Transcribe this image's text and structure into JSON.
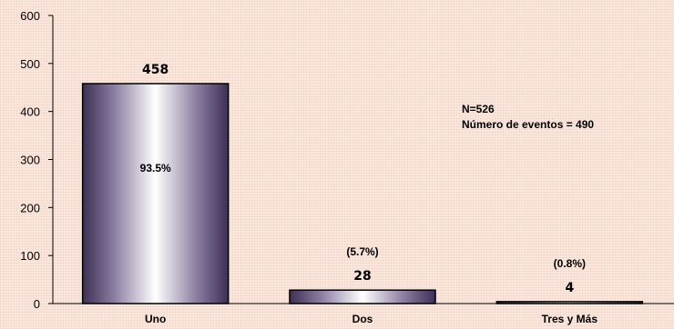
{
  "chart_data": {
    "type": "bar",
    "categories": [
      "Uno",
      "Dos",
      "Tres y Más"
    ],
    "values": [
      458,
      28,
      4
    ],
    "percent_labels": [
      "93.5%",
      "(5.7%)",
      "(0.8%)"
    ],
    "title": "",
    "xlabel": "",
    "ylabel": "",
    "ylim": [
      0,
      600
    ],
    "yticks": [
      0,
      100,
      200,
      300,
      400,
      500,
      600
    ],
    "grid": false,
    "legend": "none",
    "annotations": [
      "N=526",
      "Número de eventos = 490"
    ],
    "colors": {
      "bar_dark": "#3d2f55",
      "bar_mid": "#8c7fa2",
      "bar_light": "#ffffff",
      "background": "#fbe8de"
    }
  }
}
